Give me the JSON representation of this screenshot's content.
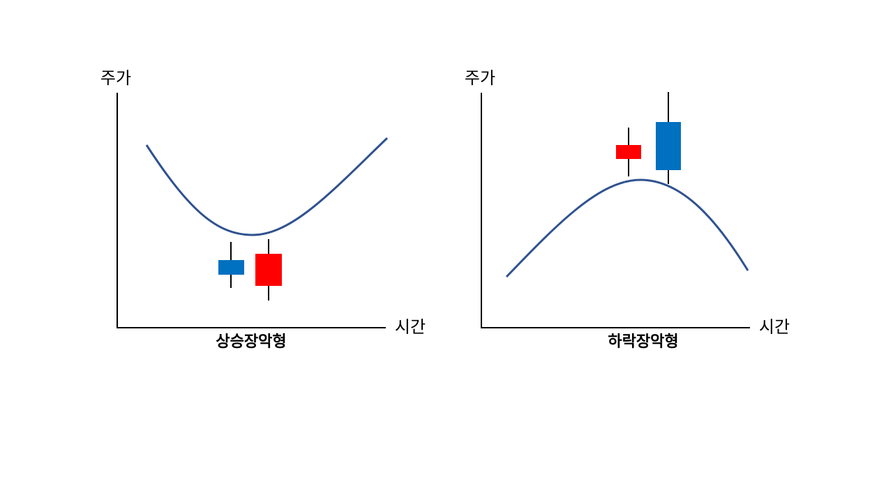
{
  "panels": [
    {
      "y_axis_label": "주가",
      "x_axis_label": "시간",
      "caption": "상승장악형"
    },
    {
      "y_axis_label": "주가",
      "x_axis_label": "시간",
      "caption": "하락장악형"
    }
  ]
}
